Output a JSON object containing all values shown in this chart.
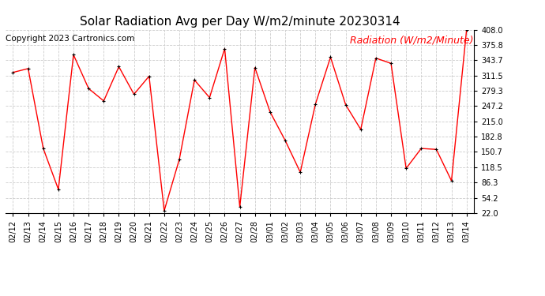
{
  "title": "Solar Radiation Avg per Day W/m2/minute 20230314",
  "copyright": "Copyright 2023 Cartronics.com",
  "legend_label": "Radiation (W/m2/Minute)",
  "dates": [
    "02/12",
    "02/13",
    "02/14",
    "02/15",
    "02/16",
    "02/17",
    "02/18",
    "02/19",
    "02/20",
    "02/21",
    "02/22",
    "02/23",
    "02/24",
    "02/25",
    "02/26",
    "02/27",
    "02/28",
    "03/01",
    "03/02",
    "03/03",
    "03/04",
    "03/05",
    "03/06",
    "03/07",
    "03/08",
    "03/09",
    "03/10",
    "03/11",
    "03/12",
    "03/13",
    "03/14"
  ],
  "values": [
    318,
    326,
    158,
    72,
    355,
    284,
    258,
    330,
    272,
    310,
    27,
    135,
    302,
    265,
    368,
    35,
    328,
    235,
    175,
    108,
    251,
    350,
    250,
    198,
    348,
    337,
    116,
    158,
    156,
    90,
    408
  ],
  "y_ticks": [
    22.0,
    54.2,
    86.3,
    118.5,
    150.7,
    182.8,
    215.0,
    247.2,
    279.3,
    311.5,
    343.7,
    375.8,
    408.0
  ],
  "line_color": "red",
  "marker_color": "black",
  "bg_color": "#ffffff",
  "grid_color": "#cccccc",
  "title_fontsize": 11,
  "copyright_fontsize": 7.5,
  "legend_fontsize": 9,
  "tick_fontsize": 7,
  "ymin": 22.0,
  "ymax": 408.0
}
